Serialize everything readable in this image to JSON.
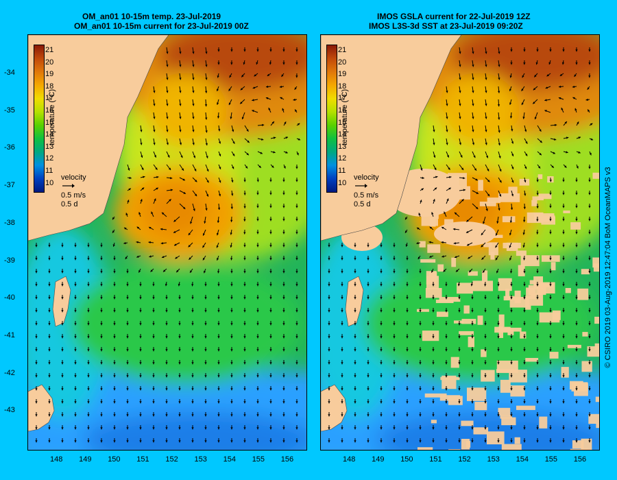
{
  "panels": [
    {
      "id": "left",
      "title_line1": "OM_an01 10-15m temp. 23-Jul-2019",
      "title_line2": "OM_an01 10-15m current for 23-Jul-2019 00Z"
    },
    {
      "id": "right",
      "title_line1": "IMOS GSLA current for 22-Jul-2019 12Z",
      "title_line2": "IMOS L3S-3d SST at 23-Jul-2019 09:20Z"
    }
  ],
  "colorbar": {
    "title": "temperature (°C)",
    "labels": [
      "21",
      "20",
      "19",
      "18",
      "17",
      "16",
      "15",
      "14",
      "13",
      "12",
      "11",
      "10"
    ],
    "colors": [
      "#8a1a08",
      "#c24a0a",
      "#e0780a",
      "#f5a800",
      "#f0dc00",
      "#b4e000",
      "#5ad000",
      "#10c040",
      "#00a880",
      "#0090e0",
      "#0040c0",
      "#001a80"
    ]
  },
  "velocity_legend": {
    "title": "velocity",
    "speed": "0.5 m/s",
    "duration": "0.5 d"
  },
  "axes": {
    "lat_ticks": [
      "-34",
      "-35",
      "-36",
      "-37",
      "-38",
      "-39",
      "-40",
      "-41",
      "-42",
      "-43"
    ],
    "lon_ticks": [
      "148",
      "149",
      "150",
      "151",
      "152",
      "153",
      "154",
      "155",
      "156"
    ]
  },
  "credit": "© CSIRO 2019   03-Aug-2019 12:47:04 BoM OceanMAPS v3",
  "colors": {
    "background": "#00c8ff",
    "land": "#f8cc9c",
    "eddy_warm": "#f2a000",
    "eddy_core": "#e88a00",
    "north_warm": "#b84a10",
    "shelf_cool": "#19c8e0",
    "south_cold": "#2aa0ff"
  }
}
